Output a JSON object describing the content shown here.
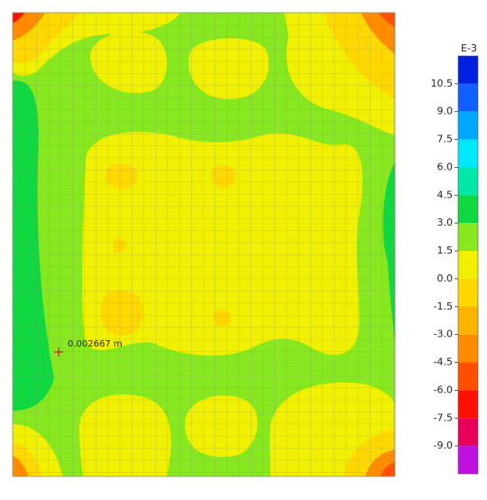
{
  "chart_data": {
    "type": "contour",
    "annotation": "0.002667 m",
    "colorbar": {
      "unit": "E-3",
      "ylim": [
        -10.5,
        12
      ],
      "yticks": [
        {
          "value": 10.5,
          "label": "10.5"
        },
        {
          "value": 9,
          "label": "9.0"
        },
        {
          "value": 7.5,
          "label": "7.5"
        },
        {
          "value": 6,
          "label": "6.0"
        },
        {
          "value": 4.5,
          "label": "4.5"
        },
        {
          "value": 3,
          "label": "3.0"
        },
        {
          "value": 1.5,
          "label": "1.5"
        },
        {
          "value": 0,
          "label": "0.0"
        },
        {
          "value": -1.5,
          "label": "-1.5"
        },
        {
          "value": -3,
          "label": "-3.0"
        },
        {
          "value": -4.5,
          "label": "-4.5"
        },
        {
          "value": -6,
          "label": "-6.0"
        },
        {
          "value": -7.5,
          "label": "-7.5"
        },
        {
          "value": -9,
          "label": "-9.0"
        }
      ],
      "colors": [
        "#0020e0",
        "#1060ff",
        "#00a8ff",
        "#00e8ff",
        "#00e8a8",
        "#10d840",
        "#88e820",
        "#f0f000",
        "#ffd800",
        "#ffb400",
        "#ff8c00",
        "#ff5000",
        "#ff1000",
        "#e8005a",
        "#c010e0"
      ]
    }
  }
}
